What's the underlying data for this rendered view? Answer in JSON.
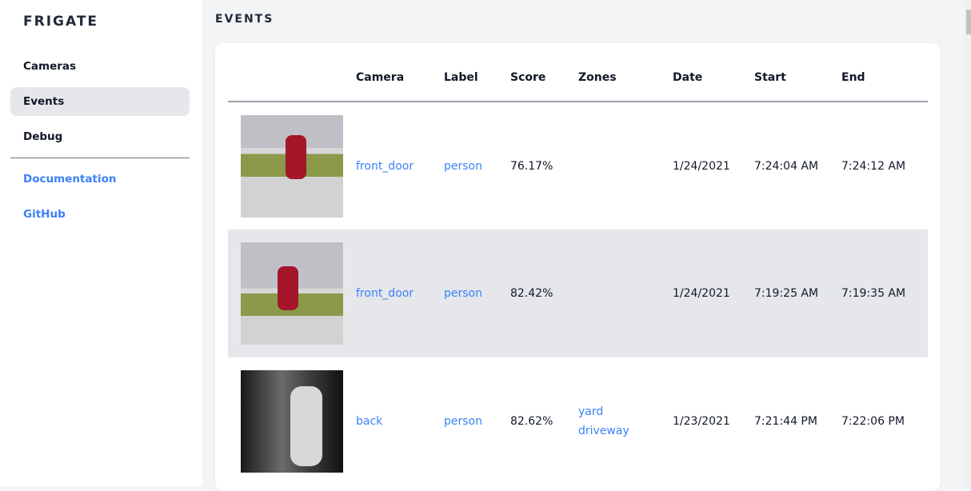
{
  "sidebar": {
    "brand": "FRIGATE",
    "items": [
      {
        "label": "Cameras"
      },
      {
        "label": "Events"
      },
      {
        "label": "Debug"
      }
    ],
    "links": [
      {
        "label": "Documentation"
      },
      {
        "label": "GitHub"
      }
    ]
  },
  "page": {
    "title": "EVENTS"
  },
  "table": {
    "headers": [
      "",
      "Camera",
      "Label",
      "Score",
      "Zones",
      "Date",
      "Start",
      "End"
    ],
    "rows": [
      {
        "camera": "front_door",
        "label": "person",
        "score": "76.17%",
        "zones": [
          "",
          ""
        ],
        "date": "1/24/2021",
        "start": "7:24:04 AM",
        "end": "7:24:12 AM"
      },
      {
        "camera": "front_door",
        "label": "person",
        "score": "82.42%",
        "zones": [
          "",
          ""
        ],
        "date": "1/24/2021",
        "start": "7:19:25 AM",
        "end": "7:19:35 AM"
      },
      {
        "camera": "back",
        "label": "person",
        "score": "82.62%",
        "zones": [
          "yard",
          "driveway"
        ],
        "date": "1/23/2021",
        "start": "7:21:44 PM",
        "end": "7:22:06 PM"
      }
    ]
  },
  "colors": {
    "accent": "#3b82f6",
    "active_bg": "#e5e7eb"
  }
}
